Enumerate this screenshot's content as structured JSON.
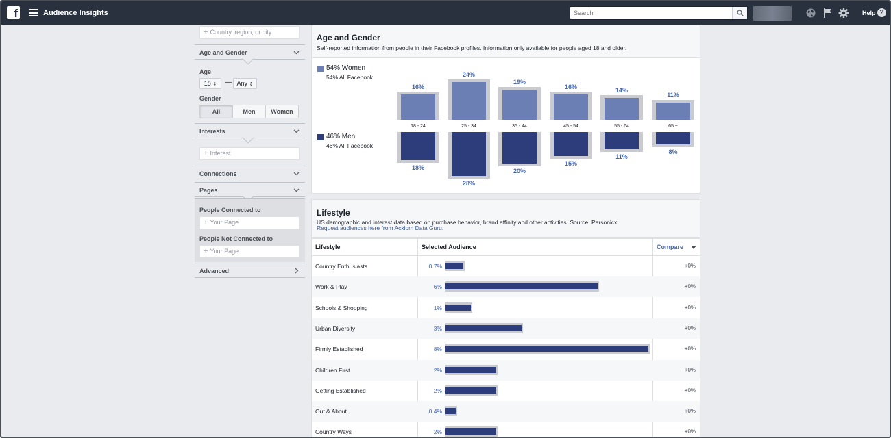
{
  "topbar": {
    "app_title": "Audience Insights",
    "search_placeholder": "Search",
    "help_label": "Help",
    "icons": [
      "facebook-logo",
      "menu-icon",
      "search-icon",
      "globe-icon",
      "flag-icon",
      "gear-icon",
      "help-icon"
    ]
  },
  "sidebar": {
    "location_placeholder": "Country, region, or city",
    "age_gender_title": "Age and Gender",
    "age_label": "Age",
    "age_min": "18",
    "age_sep": "—",
    "age_max": "Any",
    "gender_label": "Gender",
    "gender_options": [
      "All",
      "Men",
      "Women"
    ],
    "gender_selected": "All",
    "interests_title": "Interests",
    "interest_placeholder": "Interest",
    "connections_title": "Connections",
    "pages_title": "Pages",
    "people_connected_label": "People Connected to",
    "people_connected_placeholder": "Your Page",
    "people_not_connected_label": "People Not Connected to",
    "people_not_connected_placeholder": "Your Page",
    "advanced_title": "Advanced"
  },
  "age_gender": {
    "title": "Age and Gender",
    "subtitle": "Self-reported information from people in their Facebook profiles. Information only available for people aged 18 and older.",
    "women_legend": "54% Women",
    "women_sub": "54% All Facebook",
    "men_legend": "46% Men",
    "men_sub": "46% All Facebook",
    "colors": {
      "women": "#6b7fb5",
      "men": "#2d3d7c",
      "benchmark": "#c9cbd1"
    }
  },
  "chart_data": {
    "type": "bar",
    "categories": [
      "18 - 24",
      "25 - 34",
      "35 - 44",
      "45 - 54",
      "55 - 64",
      "65 +"
    ],
    "series": [
      {
        "name": "54% Women",
        "values": [
          16,
          24,
          19,
          16,
          14,
          11
        ],
        "labels": [
          "16%",
          "24%",
          "19%",
          "16%",
          "14%",
          "11%"
        ]
      },
      {
        "name": "46% Men",
        "values": [
          18,
          28,
          20,
          15,
          11,
          8
        ],
        "labels": [
          "18%",
          "28%",
          "20%",
          "15%",
          "11%",
          "8%"
        ]
      }
    ]
  },
  "lifestyle": {
    "title": "Lifestyle",
    "subtitle": "US demographic and interest data based on purchase behavior, brand affinity and other activities. Source: Personicx",
    "link": "Request audiences here from Acxiom Data Guru.",
    "col_lifestyle": "Lifestyle",
    "col_selected": "Selected Audience",
    "col_compare": "Compare",
    "rows": [
      {
        "name": "Country Enthusiasts",
        "value": "0.7%",
        "pct": 0.7,
        "compare": "+0%"
      },
      {
        "name": "Work & Play",
        "value": "6%",
        "pct": 6,
        "compare": "+0%"
      },
      {
        "name": "Schools & Shopping",
        "value": "1%",
        "pct": 1,
        "compare": "+0%"
      },
      {
        "name": "Urban Diversity",
        "value": "3%",
        "pct": 3,
        "compare": "+0%"
      },
      {
        "name": "Firmly Established",
        "value": "8%",
        "pct": 8,
        "compare": "+0%"
      },
      {
        "name": "Children First",
        "value": "2%",
        "pct": 2,
        "compare": "+0%"
      },
      {
        "name": "Getting Established",
        "value": "2%",
        "pct": 2,
        "compare": "+0%"
      },
      {
        "name": "Out & About",
        "value": "0.4%",
        "pct": 0.4,
        "compare": "+0%"
      },
      {
        "name": "Country Ways",
        "value": "2%",
        "pct": 2,
        "compare": "+0%"
      }
    ]
  }
}
